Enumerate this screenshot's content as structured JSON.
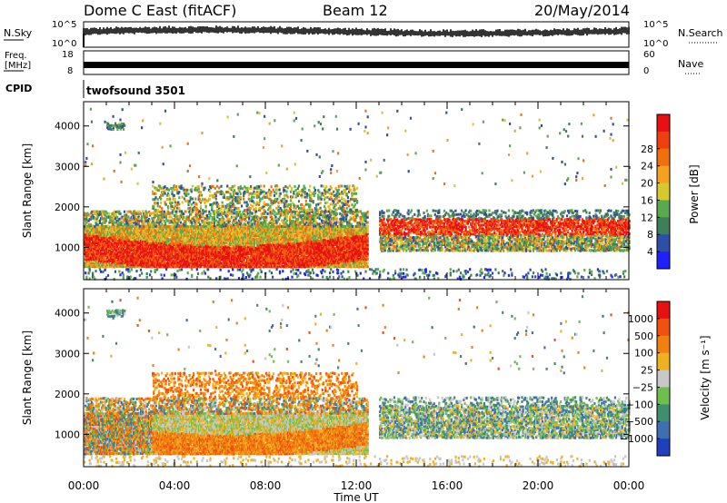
{
  "header": {
    "station": "Dome C East (fitACF)",
    "beam": "Beam 12",
    "date": "20/May/2014"
  },
  "nsky": {
    "label": "N.Sky",
    "tick_top": "10^5",
    "tick_bottom": "10^0",
    "right_label": "N.Search"
  },
  "freq": {
    "label_line1": "Freq.",
    "label_line2": "[MHz]",
    "tick_top": "18",
    "tick_bottom": "8",
    "right_tick_top": "60",
    "right_tick_bottom": "0",
    "right_label": "Nave"
  },
  "cpid": {
    "label": "CPID",
    "program": "twofsound 3501"
  },
  "x_axis": {
    "label": "Time UT",
    "ticks": [
      "00:00",
      "04:00",
      "08:00",
      "12:00",
      "16:00",
      "20:00",
      "00:00"
    ]
  },
  "chart_data": [
    {
      "type": "heatmap",
      "panel": "power",
      "ylabel": "Slant Range [km]",
      "y_ticks": [
        "1000",
        "2000",
        "3000",
        "4000"
      ],
      "ylim": [
        200,
        4600
      ],
      "xlim_hours": [
        0,
        24
      ],
      "colorbar_label": "Power [dB]",
      "colorbar_ticks": [
        "4",
        "8",
        "12",
        "16",
        "20",
        "24",
        "28"
      ],
      "colorbar_colors": [
        "#1f1fff",
        "#2e4fa6",
        "#3e7f5a",
        "#5aa850",
        "#d8c830",
        "#f4a020",
        "#f07010",
        "#f04010",
        "#e81010"
      ]
    },
    {
      "type": "heatmap",
      "panel": "velocity",
      "ylabel": "Slant Range [km]",
      "y_ticks": [
        "1000",
        "2000",
        "3000",
        "4000"
      ],
      "ylim": [
        200,
        4600
      ],
      "xlim_hours": [
        0,
        24
      ],
      "colorbar_label": "Velocity [m s⁻¹]",
      "colorbar_ticks": [
        "1000",
        "500",
        "100",
        "25",
        "−25",
        "−100",
        "−500",
        "−1000"
      ],
      "colorbar_colors": [
        "#1f3fbf",
        "#3f6fb0",
        "#3f8f6f",
        "#6fbf4f",
        "#c8c8c8",
        "#f0b020",
        "#f08010",
        "#f05010",
        "#e81010"
      ]
    }
  ]
}
